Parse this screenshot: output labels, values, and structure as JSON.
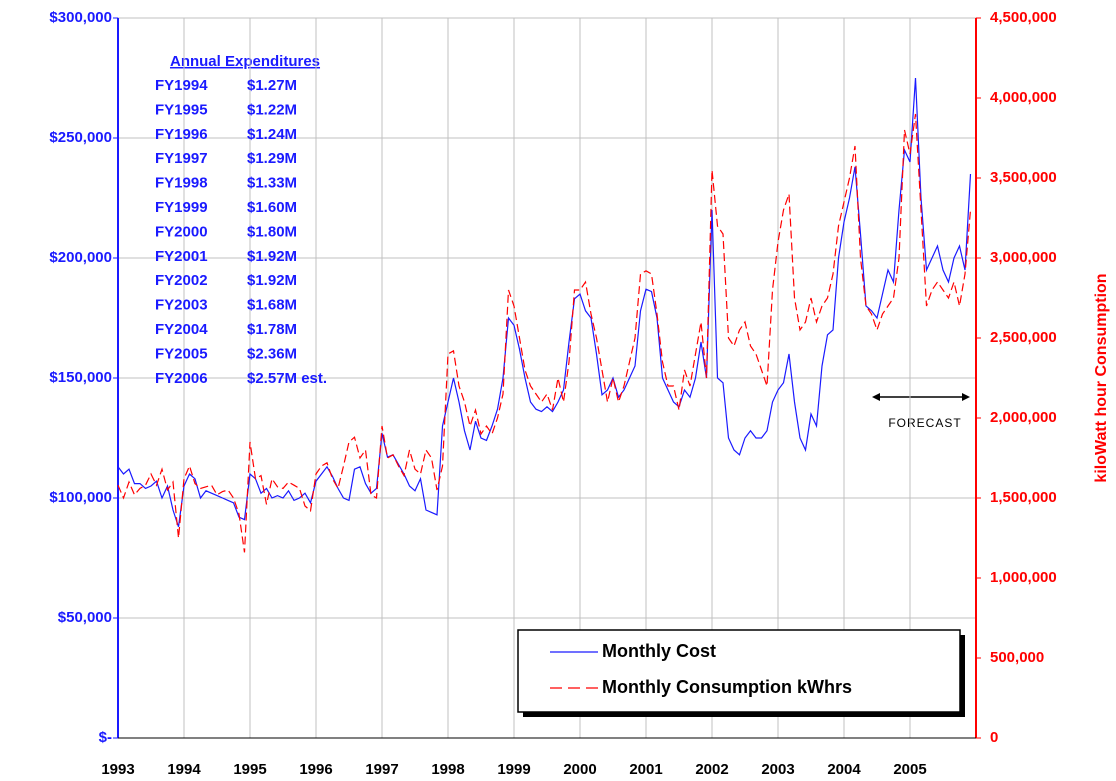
{
  "chart_data": {
    "type": "line",
    "y2_title": "kiloWatt hour  Consumption",
    "x": [
      1993.0,
      1993.083,
      1993.167,
      1993.25,
      1993.333,
      1993.417,
      1993.5,
      1993.583,
      1993.667,
      1993.75,
      1993.833,
      1993.917,
      1994.0,
      1994.083,
      1994.167,
      1994.25,
      1994.333,
      1994.417,
      1994.5,
      1994.583,
      1994.667,
      1994.75,
      1994.833,
      1994.917,
      1995.0,
      1995.083,
      1995.167,
      1995.25,
      1995.333,
      1995.417,
      1995.5,
      1995.583,
      1995.667,
      1995.75,
      1995.833,
      1995.917,
      1996.0,
      1996.083,
      1996.167,
      1996.25,
      1996.333,
      1996.417,
      1996.5,
      1996.583,
      1996.667,
      1996.75,
      1996.833,
      1996.917,
      1997.0,
      1997.083,
      1997.167,
      1997.25,
      1997.333,
      1997.417,
      1997.5,
      1997.583,
      1997.667,
      1997.75,
      1997.833,
      1997.917,
      1998.0,
      1998.083,
      1998.167,
      1998.25,
      1998.333,
      1998.417,
      1998.5,
      1998.583,
      1998.667,
      1998.75,
      1998.833,
      1998.917,
      1999.0,
      1999.083,
      1999.167,
      1999.25,
      1999.333,
      1999.417,
      1999.5,
      1999.583,
      1999.667,
      1999.75,
      1999.833,
      1999.917,
      2000.0,
      2000.083,
      2000.167,
      2000.25,
      2000.333,
      2000.417,
      2000.5,
      2000.583,
      2000.667,
      2000.75,
      2000.833,
      2000.917,
      2001.0,
      2001.083,
      2001.167,
      2001.25,
      2001.333,
      2001.417,
      2001.5,
      2001.583,
      2001.667,
      2001.75,
      2001.833,
      2001.917,
      2002.0,
      2002.083,
      2002.167,
      2002.25,
      2002.333,
      2002.417,
      2002.5,
      2002.583,
      2002.667,
      2002.75,
      2002.833,
      2002.917,
      2003.0,
      2003.083,
      2003.167,
      2003.25,
      2003.333,
      2003.417,
      2003.5,
      2003.583,
      2003.667,
      2003.75,
      2003.833,
      2003.917,
      2004.0,
      2004.083,
      2004.167,
      2004.25,
      2004.333,
      2004.417,
      2004.5,
      2004.583,
      2004.667,
      2004.75,
      2004.833,
      2004.917,
      2005.0,
      2005.083,
      2005.167,
      2005.25,
      2005.333,
      2005.417,
      2005.5,
      2005.583,
      2005.667,
      2005.75,
      2005.833,
      2005.917
    ],
    "series": [
      {
        "name": "Monthly Cost",
        "color": "#1a1aff",
        "axis": "y",
        "dash": false,
        "values": [
          113000,
          110000,
          112000,
          106000,
          106000,
          104000,
          105000,
          107000,
          100000,
          105000,
          95000,
          88000,
          105000,
          110000,
          108000,
          100000,
          103000,
          102000,
          101000,
          100000,
          99000,
          98000,
          92000,
          91000,
          110000,
          108000,
          102000,
          104000,
          100000,
          101000,
          100000,
          103000,
          99000,
          100000,
          102000,
          98000,
          107000,
          110000,
          113000,
          109000,
          104000,
          100000,
          99000,
          112000,
          113000,
          106000,
          102000,
          104000,
          127000,
          117000,
          118000,
          114000,
          110000,
          105000,
          103000,
          108000,
          95000,
          94000,
          93000,
          130000,
          140000,
          150000,
          140000,
          128000,
          120000,
          132000,
          125000,
          124000,
          130000,
          137000,
          150000,
          175000,
          172000,
          162000,
          150000,
          140000,
          137000,
          136000,
          138000,
          136000,
          140000,
          145000,
          165000,
          183000,
          185000,
          178000,
          175000,
          160000,
          143000,
          145000,
          150000,
          142000,
          145000,
          150000,
          155000,
          178000,
          187000,
          186000,
          175000,
          150000,
          145000,
          140000,
          138000,
          145000,
          142000,
          150000,
          165000,
          150000,
          220000,
          150000,
          148000,
          125000,
          120000,
          118000,
          125000,
          128000,
          125000,
          125000,
          128000,
          140000,
          145000,
          148000,
          160000,
          140000,
          125000,
          120000,
          135000,
          130000,
          155000,
          168000,
          170000,
          200000,
          215000,
          225000,
          238000,
          210000,
          180000,
          178000,
          175000,
          185000,
          195000,
          190000,
          220000,
          245000,
          240000,
          275000,
          225000,
          195000,
          200000,
          205000,
          195000,
          190000,
          200000,
          205000,
          195000,
          235000
        ]
      },
      {
        "name": "Monthly Consumption kWhrs",
        "color": "#ff0000",
        "axis": "y2",
        "dash": true,
        "values": [
          1580000,
          1500000,
          1600000,
          1520000,
          1560000,
          1580000,
          1650000,
          1580000,
          1680000,
          1550000,
          1600000,
          1250000,
          1620000,
          1700000,
          1590000,
          1560000,
          1570000,
          1580000,
          1520000,
          1540000,
          1550000,
          1500000,
          1400000,
          1160000,
          1850000,
          1620000,
          1640000,
          1460000,
          1620000,
          1570000,
          1560000,
          1600000,
          1580000,
          1560000,
          1450000,
          1420000,
          1650000,
          1700000,
          1720000,
          1620000,
          1560000,
          1700000,
          1850000,
          1880000,
          1750000,
          1800000,
          1520000,
          1500000,
          1950000,
          1750000,
          1770000,
          1700000,
          1640000,
          1800000,
          1680000,
          1650000,
          1800000,
          1750000,
          1550000,
          1700000,
          2400000,
          2420000,
          2200000,
          2100000,
          1950000,
          2050000,
          1900000,
          1950000,
          1900000,
          2000000,
          2150000,
          2800000,
          2700000,
          2500000,
          2300000,
          2200000,
          2150000,
          2100000,
          2150000,
          2050000,
          2250000,
          2100000,
          2350000,
          2800000,
          2800000,
          2850000,
          2650000,
          2500000,
          2300000,
          2100000,
          2250000,
          2100000,
          2200000,
          2350000,
          2500000,
          2900000,
          2920000,
          2900000,
          2650000,
          2350000,
          2200000,
          2200000,
          2050000,
          2300000,
          2200000,
          2400000,
          2600000,
          2250000,
          3550000,
          3200000,
          3150000,
          2500000,
          2450000,
          2550000,
          2600000,
          2450000,
          2400000,
          2300000,
          2200000,
          2800000,
          3100000,
          3300000,
          3400000,
          2750000,
          2550000,
          2600000,
          2750000,
          2600000,
          2700000,
          2750000,
          2900000,
          3200000,
          3350000,
          3500000,
          3700000,
          3000000,
          2700000,
          2650000,
          2550000,
          2650000,
          2700000,
          2750000,
          3000000,
          3800000,
          3650000,
          3900000,
          3300000,
          2700000,
          2800000,
          2850000,
          2800000,
          2750000,
          2850000,
          2700000,
          2900000,
          3300000
        ]
      }
    ],
    "xlim": [
      1993,
      2006
    ],
    "xticks": [
      1993,
      1994,
      1995,
      1996,
      1997,
      1998,
      1999,
      2000,
      2001,
      2002,
      2003,
      2004,
      2005
    ],
    "ylim": [
      0,
      300000
    ],
    "yticks": [
      {
        "value": 0,
        "label": "$-"
      },
      {
        "value": 50000,
        "label": "$50,000"
      },
      {
        "value": 100000,
        "label": "$100,000"
      },
      {
        "value": 150000,
        "label": "$150,000"
      },
      {
        "value": 200000,
        "label": "$200,000"
      },
      {
        "value": 250000,
        "label": "$250,000"
      },
      {
        "value": 300000,
        "label": "$300,000"
      }
    ],
    "y2lim": [
      0,
      4500000
    ],
    "y2ticks": [
      0,
      {
        "value": 500000,
        "label": "500,000"
      },
      {
        "value": 1000000,
        "label": "1,000,000"
      },
      {
        "value": 1500000,
        "label": "1,500,000"
      },
      {
        "value": 2000000,
        "label": "2,000,000"
      },
      {
        "value": 2500000,
        "label": "2,500,000"
      },
      {
        "value": 3000000,
        "label": "3,000,000"
      },
      {
        "value": 3500000,
        "label": "3,500,000"
      },
      {
        "value": 4000000,
        "label": "4,000,000"
      },
      {
        "value": 4500000,
        "label": "4,500,000"
      }
    ],
    "grid": true,
    "legend": "lower right",
    "annotation": "FORECAST",
    "table": {
      "title": "Annual Expenditures",
      "rows": [
        [
          "FY1994",
          "$1.27M"
        ],
        [
          "FY1995",
          "$1.22M"
        ],
        [
          "FY1996",
          "$1.24M"
        ],
        [
          "FY1997",
          "$1.29M"
        ],
        [
          "FY1998",
          "$1.33M"
        ],
        [
          "FY1999",
          "$1.60M"
        ],
        [
          "FY2000",
          "$1.80M"
        ],
        [
          "FY2001",
          "$1.92M"
        ],
        [
          "FY2002",
          "$1.92M"
        ],
        [
          "FY2003",
          "$1.68M"
        ],
        [
          "FY2004",
          "$1.78M"
        ],
        [
          "FY2005",
          "$2.36M"
        ],
        [
          "FY2006",
          "$2.57M est."
        ]
      ]
    }
  }
}
